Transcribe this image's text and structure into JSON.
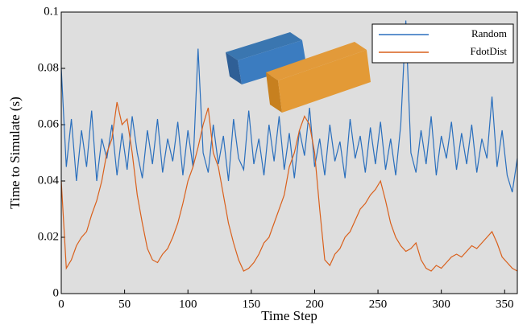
{
  "chart_data": {
    "type": "line",
    "xlabel": "Time Step",
    "ylabel": "Time to Simulate (s)",
    "x": [
      0,
      4,
      8,
      12,
      16,
      20,
      24,
      28,
      32,
      36,
      40,
      44,
      48,
      52,
      56,
      60,
      64,
      68,
      72,
      76,
      80,
      84,
      88,
      92,
      96,
      100,
      104,
      108,
      112,
      116,
      120,
      124,
      128,
      132,
      136,
      140,
      144,
      148,
      152,
      156,
      160,
      164,
      168,
      172,
      176,
      180,
      184,
      188,
      192,
      196,
      200,
      204,
      208,
      212,
      216,
      220,
      224,
      228,
      232,
      236,
      240,
      244,
      248,
      252,
      256,
      260,
      264,
      268,
      272,
      276,
      280,
      284,
      288,
      292,
      296,
      300,
      304,
      308,
      312,
      316,
      320,
      324,
      328,
      332,
      336,
      340,
      344,
      348,
      352,
      356,
      360
    ],
    "series": [
      {
        "name": "Random",
        "color": "#2a6fbd",
        "values": [
          0.08,
          0.045,
          0.062,
          0.04,
          0.058,
          0.045,
          0.065,
          0.04,
          0.055,
          0.048,
          0.06,
          0.042,
          0.057,
          0.044,
          0.063,
          0.05,
          0.041,
          0.058,
          0.046,
          0.062,
          0.043,
          0.055,
          0.047,
          0.061,
          0.042,
          0.058,
          0.045,
          0.087,
          0.05,
          0.043,
          0.06,
          0.046,
          0.056,
          0.04,
          0.062,
          0.048,
          0.044,
          0.065,
          0.046,
          0.055,
          0.042,
          0.06,
          0.047,
          0.063,
          0.044,
          0.057,
          0.041,
          0.058,
          0.049,
          0.066,
          0.045,
          0.055,
          0.042,
          0.06,
          0.047,
          0.054,
          0.041,
          0.062,
          0.048,
          0.056,
          0.043,
          0.059,
          0.046,
          0.061,
          0.044,
          0.055,
          0.042,
          0.06,
          0.097,
          0.05,
          0.043,
          0.058,
          0.046,
          0.063,
          0.042,
          0.056,
          0.048,
          0.061,
          0.044,
          0.057,
          0.046,
          0.06,
          0.043,
          0.055,
          0.048,
          0.07,
          0.045,
          0.058,
          0.042,
          0.036,
          0.048
        ]
      },
      {
        "name": "FdotDist",
        "color": "#d9601c",
        "values": [
          0.04,
          0.009,
          0.012,
          0.017,
          0.02,
          0.022,
          0.028,
          0.033,
          0.04,
          0.05,
          0.055,
          0.068,
          0.06,
          0.062,
          0.05,
          0.035,
          0.025,
          0.016,
          0.012,
          0.011,
          0.014,
          0.016,
          0.02,
          0.025,
          0.032,
          0.04,
          0.045,
          0.052,
          0.06,
          0.066,
          0.05,
          0.045,
          0.035,
          0.025,
          0.018,
          0.012,
          0.008,
          0.009,
          0.011,
          0.014,
          0.018,
          0.02,
          0.025,
          0.03,
          0.035,
          0.045,
          0.05,
          0.058,
          0.063,
          0.06,
          0.05,
          0.03,
          0.012,
          0.01,
          0.014,
          0.016,
          0.02,
          0.022,
          0.026,
          0.03,
          0.032,
          0.035,
          0.037,
          0.04,
          0.033,
          0.025,
          0.02,
          0.017,
          0.015,
          0.016,
          0.018,
          0.012,
          0.009,
          0.008,
          0.01,
          0.009,
          0.011,
          0.013,
          0.014,
          0.013,
          0.015,
          0.017,
          0.016,
          0.018,
          0.02,
          0.022,
          0.018,
          0.013,
          0.011,
          0.009,
          0.008
        ]
      }
    ],
    "xlim": [
      0,
      360
    ],
    "ylim": [
      0,
      0.1
    ],
    "xticks": [
      0,
      50,
      100,
      150,
      200,
      250,
      300,
      350
    ],
    "yticks": [
      0,
      0.02,
      0.04,
      0.06,
      0.08,
      0.1
    ],
    "legend": "upper right"
  }
}
